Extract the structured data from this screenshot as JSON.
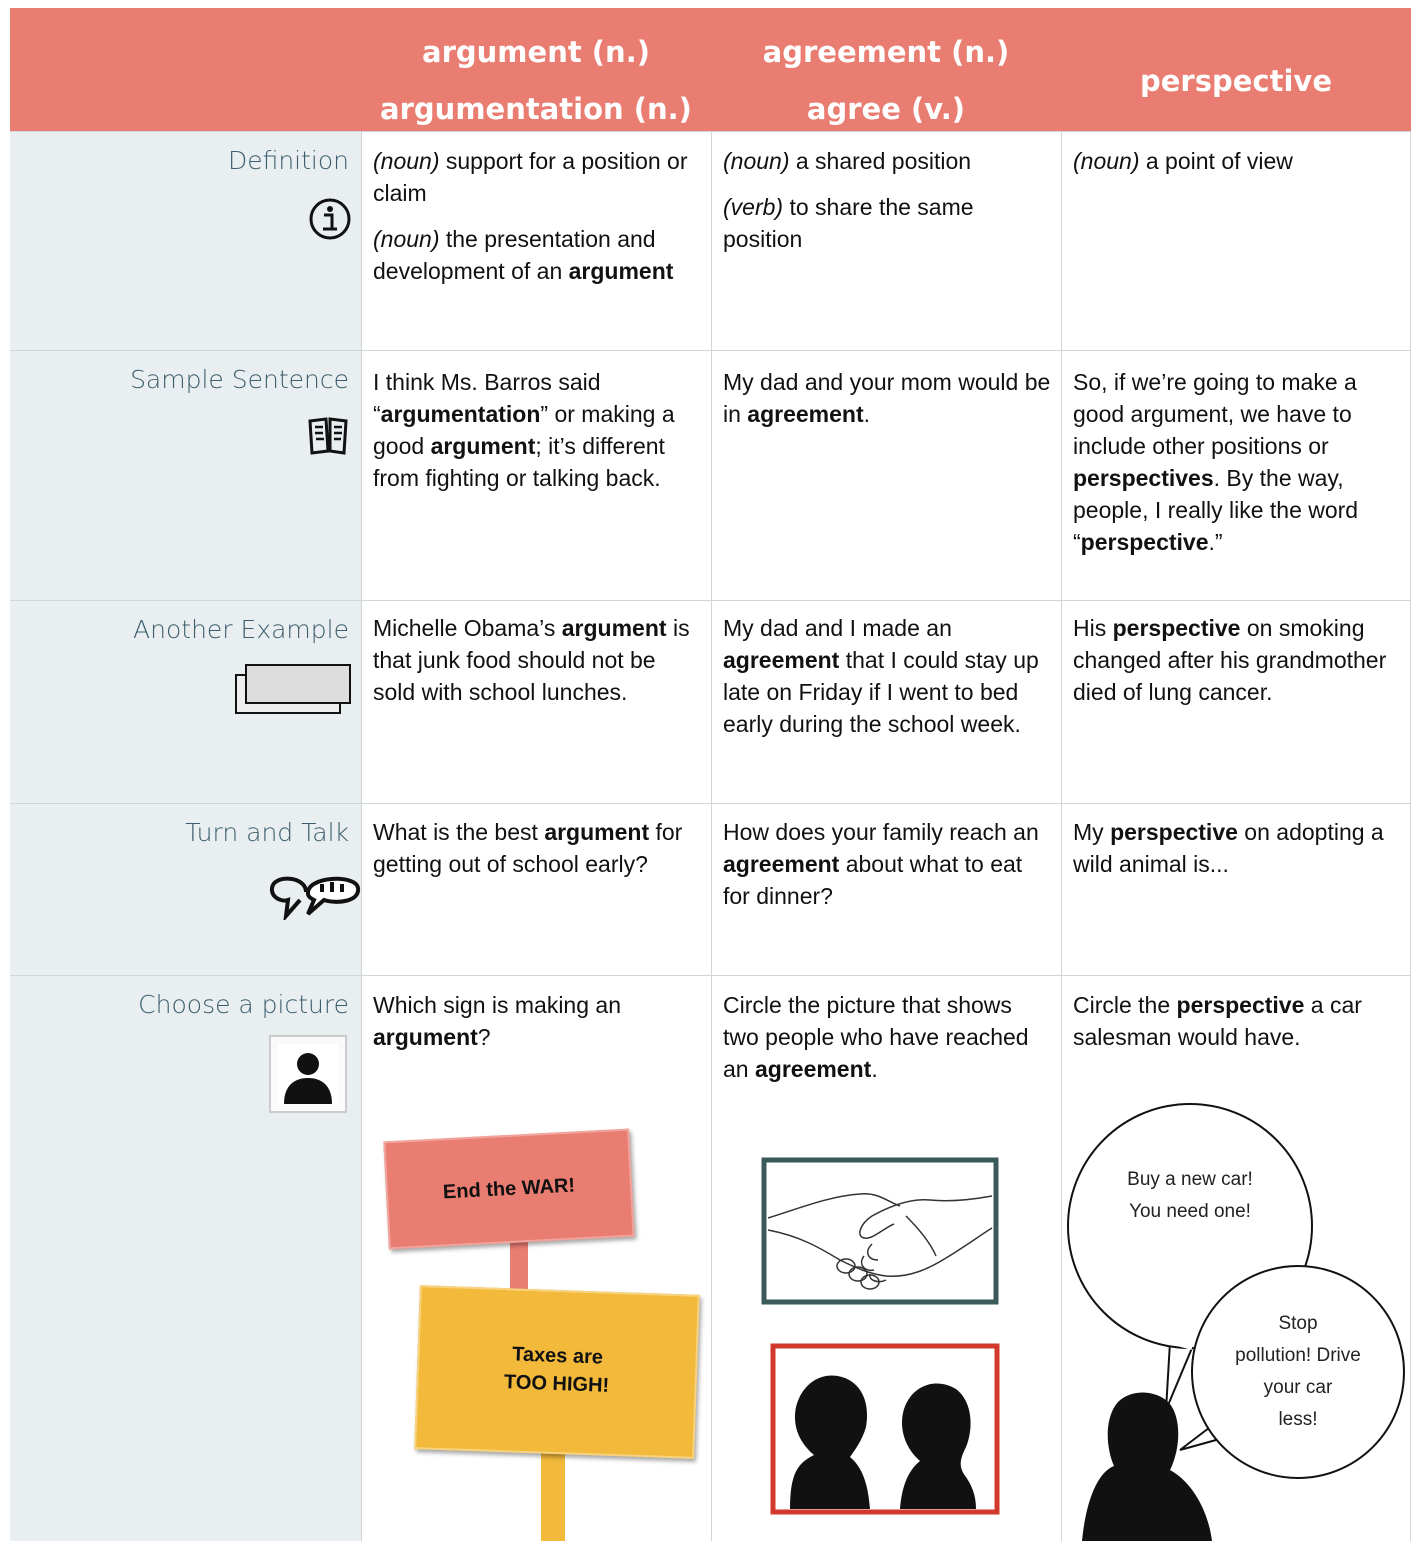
{
  "header": [
    [
      "argument (n.)",
      "argumentation (n.)"
    ],
    [
      "agreement (n.)",
      "agree (v.)"
    ],
    [
      "perspective"
    ]
  ],
  "rows": [
    {
      "label": "Definition",
      "cells": [
        [
          [
            "(noun)",
            " support for a position or claim"
          ],
          [
            "(noun)",
            " the presentation and development of an ",
            "argument"
          ]
        ],
        [
          [
            "(noun)",
            " a shared position"
          ],
          [
            "(verb)",
            " to share the same position"
          ]
        ],
        [
          [
            "(noun)",
            " a point of view"
          ]
        ]
      ]
    },
    {
      "label": "Sample Sentence",
      "cells": [
        [
          [
            "I think Ms. Barros said “",
            "argumentation",
            "” or making a good ",
            "argument",
            "; it’s different from fighting or talking back."
          ]
        ],
        [
          [
            "My dad and your mom would be in ",
            "agreement",
            "."
          ]
        ],
        [
          [
            "So, if we’re going to make a good argument, we have to include other positions or ",
            "perspectives",
            ". By the way, people, I really like the word “",
            "perspective",
            ".”"
          ]
        ]
      ]
    },
    {
      "label": "Another Example",
      "cells": [
        [
          [
            "Michelle Obama’s ",
            "argument",
            " is that junk food should not be sold with school lunches."
          ]
        ],
        [
          [
            "My dad and I made an ",
            "agreement",
            " that I could stay up late on Friday if I went to bed early during the school week."
          ]
        ],
        [
          [
            "His ",
            "perspective",
            " on smoking changed after his grandmother died of lung cancer."
          ]
        ]
      ]
    },
    {
      "label": "Turn and Talk",
      "cells": [
        [
          [
            "What is the best ",
            "argument",
            " for getting out of school early?"
          ]
        ],
        [
          [
            "How does your family reach an ",
            "agreement",
            " about what to eat for dinner?"
          ]
        ],
        [
          [
            "My ",
            "perspective",
            " on adopting a wild animal is..."
          ]
        ]
      ]
    },
    {
      "label": "Choose a picture",
      "cells": [
        [
          [
            "Which sign is making an ",
            "argument",
            "?"
          ]
        ],
        [
          [
            "Circle the picture that shows two people who have reached an ",
            "agreement",
            "."
          ]
        ],
        [
          [
            "Circle the ",
            "perspective",
            " a car salesman would have."
          ]
        ]
      ]
    }
  ],
  "signs": [
    [
      "End the WAR!"
    ],
    [
      "Taxes are",
      "TOO HIGH!"
    ]
  ],
  "bubbles": [
    [
      "Buy a new car!",
      "You need one!"
    ],
    [
      "Stop",
      "pollution! Drive",
      "your car",
      "less!"
    ]
  ]
}
